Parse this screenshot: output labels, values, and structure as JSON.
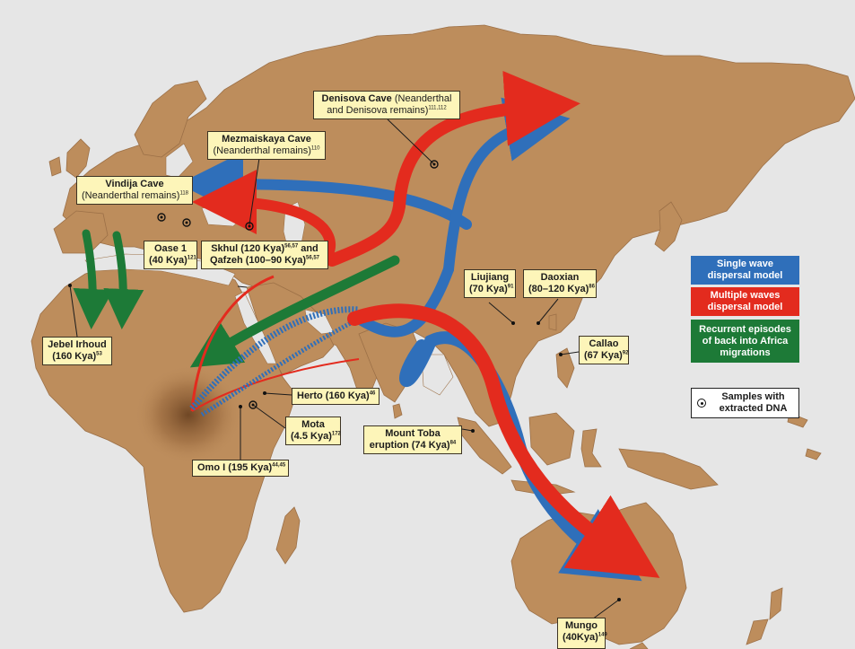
{
  "colors": {
    "land": "#bd8d5c",
    "sea": "#e6e6e6",
    "single_wave": "#2f6fba",
    "multiple_waves": "#e32b1e",
    "back_to_africa": "#1d7a37",
    "label_bg": "#fdf5b9"
  },
  "labels": {
    "denisova": {
      "title": "Denisova Cave",
      "text": " (Neanderthal",
      "line2": "and Denisova remains)",
      "ref": "111,112"
    },
    "mezmaiskaya": {
      "title": "Mezmaiskaya Cave",
      "line2": "(Neanderthal remains)",
      "ref": "110"
    },
    "vindija": {
      "title": "Vindija Cave",
      "line2": "(Neanderthal remains)",
      "ref": "118"
    },
    "oase": {
      "line1": "Oase 1",
      "line2": "(40 Kya)",
      "ref": "121"
    },
    "skhul": {
      "line1a": "Skhul (120 Kya)",
      "ref1": "56,57",
      "line1b": " and",
      "line2": "Qafzeh (100–90 Kya)",
      "ref2": "56,57"
    },
    "liujiang": {
      "line1": "Liujiang",
      "line2": "(70 Kya)",
      "ref": "91"
    },
    "daoxian": {
      "line1": "Daoxian",
      "line2": "(80–120 Kya)",
      "ref": "86"
    },
    "jebel": {
      "line1": "Jebel Irhoud",
      "line2": "(160 Kya)",
      "ref": "53"
    },
    "callao": {
      "line1": "Callao",
      "line2": "(67 Kya)",
      "ref": "92"
    },
    "herto": {
      "line1": "Herto (160 Kya)",
      "ref": "46"
    },
    "mota": {
      "line1": "Mota",
      "line2": "(4.5 Kya)",
      "ref": "172"
    },
    "toba": {
      "line1": "Mount Toba",
      "line2": "eruption (74 Kya)",
      "ref": "84"
    },
    "omo": {
      "line1": "Omo I (195 Kya)",
      "ref": "44,45"
    },
    "mungo": {
      "line1": "Mungo",
      "line2": "(40Kya)",
      "ref": "149"
    }
  },
  "legend": {
    "single": "Single wave dispersal model",
    "multiple": "Multiple waves dispersal model",
    "recurrent": "Recurrent episodes of back into Africa migrations",
    "samples": "Samples with extracted DNA"
  }
}
